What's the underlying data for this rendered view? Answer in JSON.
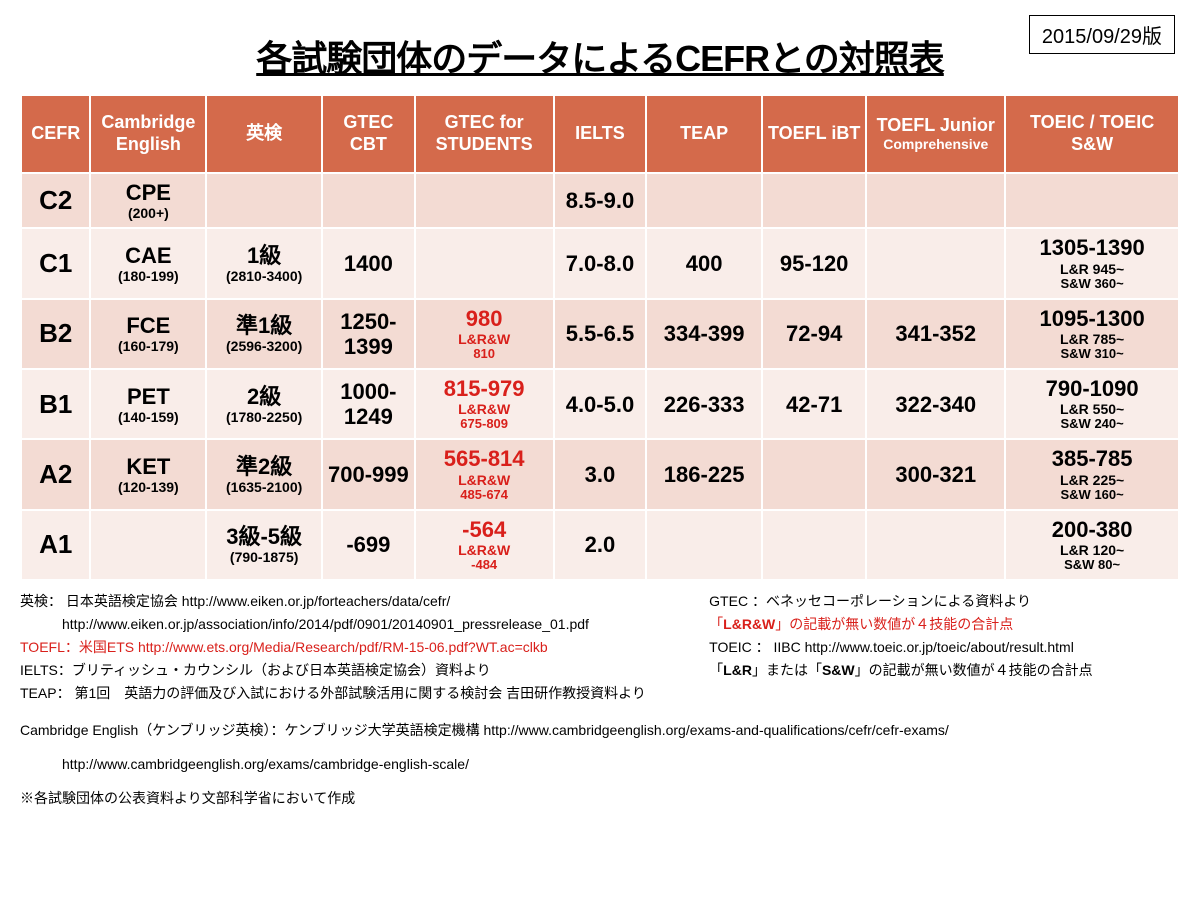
{
  "version": "2015/09/29版",
  "title": "各試験団体のデータによるCEFRとの対照表",
  "columns": [
    {
      "label": "CEFR"
    },
    {
      "label": "Cambridge English"
    },
    {
      "label": "英検"
    },
    {
      "label": "GTEC CBT"
    },
    {
      "label": "GTEC for STUDENTS"
    },
    {
      "label": "IELTS"
    },
    {
      "label": "TEAP"
    },
    {
      "label": "TOEFL iBT"
    },
    {
      "label": "TOEFL Junior",
      "sub": "Comprehensive"
    },
    {
      "label": "TOEIC / TOEIC S&W"
    }
  ],
  "col_widths": [
    "6%",
    "10%",
    "10%",
    "8%",
    "12%",
    "8%",
    "10%",
    "9%",
    "12%",
    "15%"
  ],
  "rows": [
    {
      "level": "C2",
      "cambridge": {
        "main": "CPE",
        "sub": "(200+)"
      },
      "eiken": null,
      "gtec_cbt": null,
      "gtec_students": null,
      "ielts": {
        "main": "8.5-9.0"
      },
      "teap": null,
      "toefl_ibt": null,
      "toefl_jr": null,
      "toeic": null
    },
    {
      "level": "C1",
      "cambridge": {
        "main": "CAE",
        "sub": "(180-199)"
      },
      "eiken": {
        "main": "1級",
        "sub": "(2810-3400)"
      },
      "gtec_cbt": {
        "main": "1400"
      },
      "gtec_students": null,
      "ielts": {
        "main": "7.0-8.0"
      },
      "teap": {
        "main": "400"
      },
      "toefl_ibt": {
        "main": "95-120"
      },
      "toefl_jr": null,
      "toeic": {
        "main": "1305-1390",
        "sub": "L&R 945~",
        "sub2": "S&W 360~"
      }
    },
    {
      "level": "B2",
      "cambridge": {
        "main": "FCE",
        "sub": "(160-179)"
      },
      "eiken": {
        "main": "準1級",
        "sub": "(2596-3200)"
      },
      "gtec_cbt": {
        "main": "1250-1399"
      },
      "gtec_students": {
        "main": "980",
        "sub": "L&R&W",
        "sub2": "810",
        "red": true
      },
      "ielts": {
        "main": "5.5-6.5"
      },
      "teap": {
        "main": "334-399"
      },
      "toefl_ibt": {
        "main": "72-94"
      },
      "toefl_jr": {
        "main": "341-352"
      },
      "toeic": {
        "main": "1095-1300",
        "sub": "L&R 785~",
        "sub2": "S&W 310~"
      }
    },
    {
      "level": "B1",
      "cambridge": {
        "main": "PET",
        "sub": "(140-159)"
      },
      "eiken": {
        "main": "2級",
        "sub": "(1780-2250)"
      },
      "gtec_cbt": {
        "main": "1000-1249"
      },
      "gtec_students": {
        "main": "815-979",
        "sub": "L&R&W",
        "sub2": "675-809",
        "red": true
      },
      "ielts": {
        "main": "4.0-5.0"
      },
      "teap": {
        "main": "226-333"
      },
      "toefl_ibt": {
        "main": "42-71"
      },
      "toefl_jr": {
        "main": "322-340"
      },
      "toeic": {
        "main": "790-1090",
        "sub": "L&R 550~",
        "sub2": "S&W 240~"
      }
    },
    {
      "level": "A2",
      "cambridge": {
        "main": "KET",
        "sub": "(120-139)"
      },
      "eiken": {
        "main": "準2級",
        "sub": "(1635-2100)"
      },
      "gtec_cbt": {
        "main": "700-999"
      },
      "gtec_students": {
        "main": "565-814",
        "sub": "L&R&W",
        "sub2": "485-674",
        "red": true
      },
      "ielts": {
        "main": "3.0"
      },
      "teap": {
        "main": "186-225"
      },
      "toefl_ibt": null,
      "toefl_jr": {
        "main": "300-321"
      },
      "toeic": {
        "main": "385-785",
        "sub": "L&R 225~",
        "sub2": "S&W 160~"
      }
    },
    {
      "level": "A1",
      "cambridge": null,
      "eiken": {
        "main": "3級-5級",
        "sub": "(790-1875)"
      },
      "gtec_cbt": {
        "main": "-699"
      },
      "gtec_students": {
        "main": "-564",
        "sub": "L&R&W",
        "sub2": "-484",
        "red": true
      },
      "ielts": {
        "main": "2.0"
      },
      "teap": null,
      "toefl_ibt": null,
      "toefl_jr": null,
      "toeic": {
        "main": "200-380",
        "sub": "L&R 120~",
        "sub2": "S&W 80~"
      }
    }
  ],
  "footnotes_left": [
    {
      "text": "英検： 日本英語検定協会 http://www.eiken.or.jp/forteachers/data/cefr/"
    },
    {
      "text": "　　　http://www.eiken.or.jp/association/info/2014/pdf/0901/20140901_pressrelease_01.pdf"
    },
    {
      "text": "TOEFL：米国ETS  http://www.ets.org/Media/Research/pdf/RM-15-06.pdf?WT.ac=clkb",
      "red": true
    },
    {
      "text": "IELTS：ブリティッシュ・カウンシル（および日本英語検定協会）資料より"
    },
    {
      "text": "TEAP： 第1回　英語力の評価及び入試における外部試験活用に関する検討会 吉田研作教授資料より"
    }
  ],
  "footnotes_right": [
    {
      "text": "GTEC ：ベネッセコーポレーションによる資料より"
    },
    {
      "html": "「<b>L&R&W</b>」の記載が無い数値が４技能の合計点",
      "red": true
    },
    {
      "text": "TOEIC ： IIBC http://www.toeic.or.jp/toeic/about/result.html"
    },
    {
      "html": "「<b>L&R</b>」または「<b>S&W</b>」の記載が無い数値が４技能の合計点"
    }
  ],
  "footnotes_wide": [
    {
      "text": "Cambridge English（ケンブリッジ英検）：ケンブリッジ大学英語検定機構 http://www.cambridgeenglish.org/exams-and-qualifications/cefr/cefr-exams/"
    },
    {
      "text": "　　　http://www.cambridgeenglish.org/exams/cambridge-english-scale/"
    },
    {
      "text": "※各試験団体の公表資料より文部科学省において作成"
    }
  ],
  "colors": {
    "header_bg": "#d46a4b",
    "row_odd_bg": "#f3dbd3",
    "row_even_bg": "#f9ede9",
    "red": "#d9201b",
    "border": "#ffffff"
  }
}
